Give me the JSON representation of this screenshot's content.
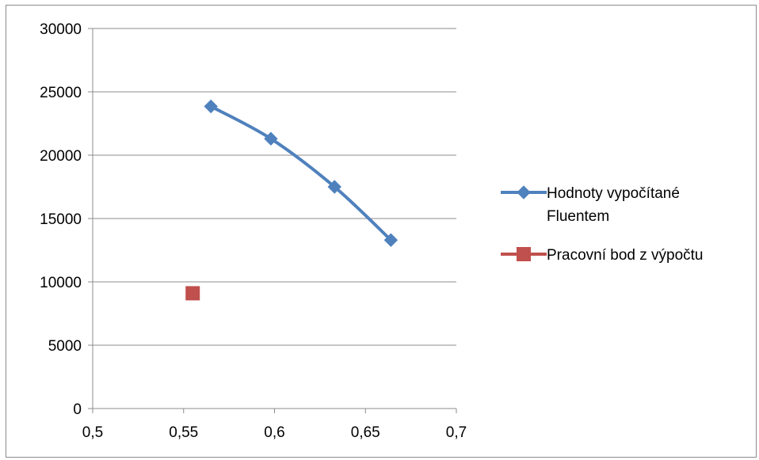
{
  "chart_data": {
    "type": "scatter",
    "title": "",
    "xlabel": "",
    "ylabel": "",
    "xlim": [
      0.5,
      0.7
    ],
    "ylim": [
      0,
      30000
    ],
    "x_ticks": [
      "0,5",
      "0,55",
      "0,6",
      "0,65",
      "0,7"
    ],
    "x_tick_values": [
      0.5,
      0.55,
      0.6,
      0.65,
      0.7
    ],
    "y_ticks": [
      "0",
      "5000",
      "10000",
      "15000",
      "20000",
      "25000",
      "30000"
    ],
    "y_tick_values": [
      0,
      5000,
      10000,
      15000,
      20000,
      25000,
      30000
    ],
    "grid": {
      "horizontal": true,
      "vertical": false
    },
    "legend_position": "right",
    "series": [
      {
        "name": "Hodnoty vypočítané Fluentem",
        "legend_lines": [
          "Hodnoty vypočítané",
          "Fluentem"
        ],
        "style": "line-with-diamond-markers",
        "smooth": true,
        "color": "#4F81BD",
        "points": [
          {
            "x": 0.565,
            "y": 23850
          },
          {
            "x": 0.598,
            "y": 21300
          },
          {
            "x": 0.633,
            "y": 17500
          },
          {
            "x": 0.664,
            "y": 13300
          }
        ]
      },
      {
        "name": "Pracovní bod z výpočtu",
        "legend_lines": [
          "Pracovní bod z výpočtu"
        ],
        "style": "square-marker",
        "smooth": false,
        "color": "#C0504D",
        "points": [
          {
            "x": 0.555,
            "y": 9100
          }
        ]
      }
    ]
  }
}
